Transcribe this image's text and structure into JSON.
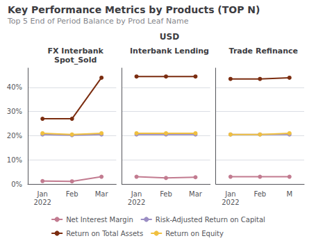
{
  "title": "Key Performance Metrics by Products (TOP N)",
  "subtitle": "Top 5 End of Period Balance by Prod Leaf Name",
  "annotations": [
    "USD"
  ],
  "legend": "bottom",
  "chart_data": [
    {
      "type": "line",
      "title": "FX Interbank\nSpot_Sold",
      "categories": [
        "Jan\n2022",
        "Feb",
        "Mar"
      ],
      "series": [
        {
          "name": "Net Interest Margin",
          "color": "#C27B90",
          "values": [
            1.2,
            1.1,
            3.0
          ]
        },
        {
          "name": "Risk-Adjusted Return on Capital",
          "color": "#9B8EC4",
          "values": [
            20.5,
            20.2,
            20.5
          ]
        },
        {
          "name": "Return on Total Assets",
          "color": "#7B2D10",
          "values": [
            27.0,
            27.0,
            44.0
          ]
        },
        {
          "name": "Return on Equity",
          "color": "#F0C040",
          "values": [
            21.0,
            20.5,
            21.0
          ]
        }
      ],
      "ylim": [
        0,
        48
      ],
      "yticks": [
        {
          "value": 0,
          "label": "0%"
        },
        {
          "value": 10,
          "label": "10%"
        },
        {
          "value": 20,
          "label": "20%"
        },
        {
          "value": 30,
          "label": "30%"
        },
        {
          "value": 40,
          "label": "40%"
        }
      ],
      "grid": true,
      "marker": "circle"
    },
    {
      "type": "line",
      "title": "Interbank Lending",
      "categories": [
        "Jan\n2022",
        "Feb",
        "Mar"
      ],
      "series": [
        {
          "name": "Net Interest Margin",
          "color": "#C27B90",
          "values": [
            3.0,
            2.5,
            2.8
          ]
        },
        {
          "name": "Risk-Adjusted Return on Capital",
          "color": "#9B8EC4",
          "values": [
            20.5,
            20.5,
            20.5
          ]
        },
        {
          "name": "Return on Total Assets",
          "color": "#7B2D10",
          "values": [
            44.5,
            44.5,
            44.5
          ]
        },
        {
          "name": "Return on Equity",
          "color": "#F0C040",
          "values": [
            21.0,
            21.0,
            21.0
          ]
        }
      ],
      "ylim": [
        0,
        48
      ],
      "yticks": [
        {
          "value": 0,
          "label": "0%"
        },
        {
          "value": 10,
          "label": "10%"
        },
        {
          "value": 20,
          "label": "20%"
        },
        {
          "value": 30,
          "label": "30%"
        },
        {
          "value": 40,
          "label": "40%"
        }
      ],
      "grid": true,
      "marker": "circle",
      "tick_labels": "x"
    },
    {
      "type": "line",
      "title": "Trade Refinance",
      "categories": [
        "Jan\n2022",
        "Feb",
        "M"
      ],
      "series": [
        {
          "name": "Net Interest Margin",
          "color": "#C27B90",
          "values": [
            3.0,
            3.0,
            3.0
          ]
        },
        {
          "name": "Risk-Adjusted Return on Capital",
          "color": "#9B8EC4",
          "values": [
            20.5,
            20.5,
            20.5
          ]
        },
        {
          "name": "Return on Total Assets",
          "color": "#7B2D10",
          "values": [
            43.5,
            43.5,
            44.0
          ]
        },
        {
          "name": "Return on Equity",
          "color": "#F0C040",
          "values": [
            20.5,
            20.5,
            21.0
          ]
        }
      ],
      "ylim": [
        0,
        48
      ],
      "yticks": [
        {
          "value": 0,
          "label": "0%"
        },
        {
          "value": 10,
          "label": "10%"
        },
        {
          "value": 20,
          "label": "20%"
        },
        {
          "value": 30,
          "label": "30%"
        },
        {
          "value": 40,
          "label": "40%"
        }
      ],
      "grid": true,
      "marker": "circle",
      "tick_labels": "x"
    }
  ]
}
